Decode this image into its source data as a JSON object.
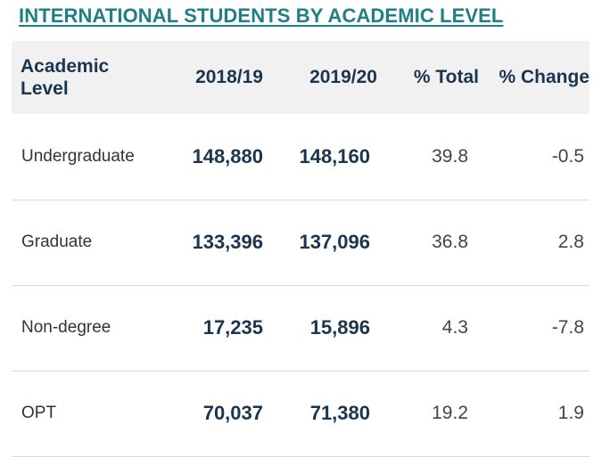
{
  "title": "INTERNATIONAL STUDENTS BY ACADEMIC LEVEL",
  "table": {
    "headers": {
      "level_line1": "Academic",
      "level_line2": "Level",
      "y2018": "2018/19",
      "y2019": "2019/20",
      "pct_total": "% Total",
      "pct_change": "% Change"
    },
    "rows": [
      {
        "level": "Undergraduate",
        "y2018": "148,880",
        "y2019": "148,160",
        "pct_total": "39.8",
        "pct_change": "-0.5"
      },
      {
        "level": "Graduate",
        "y2018": "133,396",
        "y2019": "137,096",
        "pct_total": "36.8",
        "pct_change": "2.8"
      },
      {
        "level": "Non-degree",
        "y2018": "17,235",
        "y2019": "15,896",
        "pct_total": "4.3",
        "pct_change": "-7.8"
      },
      {
        "level": "OPT",
        "y2018": "70,037",
        "y2019": "71,380",
        "pct_total": "19.2",
        "pct_change": "1.9"
      }
    ]
  },
  "colors": {
    "title": "#1f7f86",
    "header_text": "#1b3550",
    "header_bg": "#f1f1f1"
  }
}
